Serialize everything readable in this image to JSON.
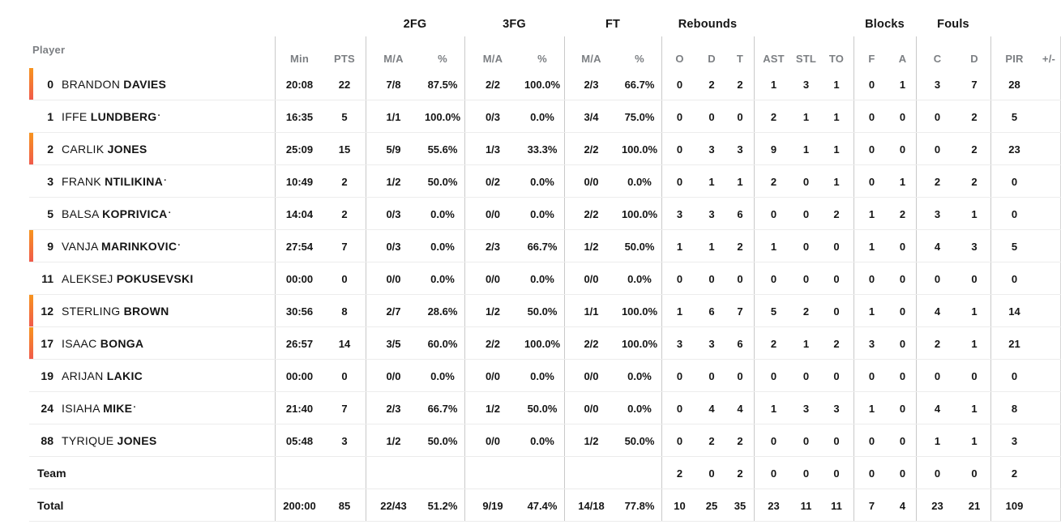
{
  "colors": {
    "on_court_bar_top": "#F7941E",
    "on_court_bar_bottom": "#F0594C",
    "header_gray": "#7c7f83",
    "divider_gray": "#c9c9c9",
    "row_line_gray": "#ececec"
  },
  "table": {
    "groups": {
      "fg2": "2FG",
      "fg3": "3FG",
      "ft": "FT",
      "rebounds": "Rebounds",
      "blocks": "Blocks",
      "fouls": "Fouls"
    },
    "columns": {
      "player": "Player",
      "min": "Min",
      "pts": "PTS",
      "ma": "M/A",
      "pct": "%",
      "reb_o": "O",
      "reb_d": "D",
      "reb_t": "T",
      "ast": "AST",
      "stl": "STL",
      "to": "TO",
      "blk_f": "F",
      "blk_a": "A",
      "foul_c": "C",
      "foul_d": "D",
      "pir": "PIR",
      "plus_minus": "+/-"
    },
    "rows": [
      {
        "type": "player",
        "number": "0",
        "first": "BRANDON",
        "last": "DAVIES",
        "dot": "",
        "on_court": true,
        "min": "20:08",
        "pts": "22",
        "fg2_ma": "7/8",
        "fg2_pct": "87.5%",
        "fg3_ma": "2/2",
        "fg3_pct": "100.0%",
        "ft_ma": "2/3",
        "ft_pct": "66.7%",
        "reb_o": "0",
        "reb_d": "2",
        "reb_t": "2",
        "ast": "1",
        "stl": "3",
        "to": "1",
        "blk_f": "0",
        "blk_a": "1",
        "foul_c": "3",
        "foul_d": "7",
        "pir": "28",
        "plus_minus": ""
      },
      {
        "type": "player",
        "number": "1",
        "first": "IFFE",
        "last": "LUNDBERG",
        "dot": "·",
        "on_court": false,
        "min": "16:35",
        "pts": "5",
        "fg2_ma": "1/1",
        "fg2_pct": "100.0%",
        "fg3_ma": "0/3",
        "fg3_pct": "0.0%",
        "ft_ma": "3/4",
        "ft_pct": "75.0%",
        "reb_o": "0",
        "reb_d": "0",
        "reb_t": "0",
        "ast": "2",
        "stl": "1",
        "to": "1",
        "blk_f": "0",
        "blk_a": "0",
        "foul_c": "0",
        "foul_d": "2",
        "pir": "5",
        "plus_minus": ""
      },
      {
        "type": "player",
        "number": "2",
        "first": "CARLIK",
        "last": "JONES",
        "dot": "",
        "on_court": true,
        "min": "25:09",
        "pts": "15",
        "fg2_ma": "5/9",
        "fg2_pct": "55.6%",
        "fg3_ma": "1/3",
        "fg3_pct": "33.3%",
        "ft_ma": "2/2",
        "ft_pct": "100.0%",
        "reb_o": "0",
        "reb_d": "3",
        "reb_t": "3",
        "ast": "9",
        "stl": "1",
        "to": "1",
        "blk_f": "0",
        "blk_a": "0",
        "foul_c": "0",
        "foul_d": "2",
        "pir": "23",
        "plus_minus": ""
      },
      {
        "type": "player",
        "number": "3",
        "first": "FRANK",
        "last": "NTILIKINA",
        "dot": "·",
        "on_court": false,
        "min": "10:49",
        "pts": "2",
        "fg2_ma": "1/2",
        "fg2_pct": "50.0%",
        "fg3_ma": "0/2",
        "fg3_pct": "0.0%",
        "ft_ma": "0/0",
        "ft_pct": "0.0%",
        "reb_o": "0",
        "reb_d": "1",
        "reb_t": "1",
        "ast": "2",
        "stl": "0",
        "to": "1",
        "blk_f": "0",
        "blk_a": "1",
        "foul_c": "2",
        "foul_d": "2",
        "pir": "0",
        "plus_minus": ""
      },
      {
        "type": "player",
        "number": "5",
        "first": "BALSA",
        "last": "KOPRIVICA",
        "dot": "·",
        "on_court": false,
        "min": "14:04",
        "pts": "2",
        "fg2_ma": "0/3",
        "fg2_pct": "0.0%",
        "fg3_ma": "0/0",
        "fg3_pct": "0.0%",
        "ft_ma": "2/2",
        "ft_pct": "100.0%",
        "reb_o": "3",
        "reb_d": "3",
        "reb_t": "6",
        "ast": "0",
        "stl": "0",
        "to": "2",
        "blk_f": "1",
        "blk_a": "2",
        "foul_c": "3",
        "foul_d": "1",
        "pir": "0",
        "plus_minus": ""
      },
      {
        "type": "player",
        "number": "9",
        "first": "VANJA",
        "last": "MARINKOVIC",
        "dot": "·",
        "on_court": true,
        "min": "27:54",
        "pts": "7",
        "fg2_ma": "0/3",
        "fg2_pct": "0.0%",
        "fg3_ma": "2/3",
        "fg3_pct": "66.7%",
        "ft_ma": "1/2",
        "ft_pct": "50.0%",
        "reb_o": "1",
        "reb_d": "1",
        "reb_t": "2",
        "ast": "1",
        "stl": "0",
        "to": "0",
        "blk_f": "1",
        "blk_a": "0",
        "foul_c": "4",
        "foul_d": "3",
        "pir": "5",
        "plus_minus": ""
      },
      {
        "type": "player",
        "number": "11",
        "first": "ALEKSEJ",
        "last": "POKUSEVSKI",
        "dot": "",
        "on_court": false,
        "min": "00:00",
        "pts": "0",
        "fg2_ma": "0/0",
        "fg2_pct": "0.0%",
        "fg3_ma": "0/0",
        "fg3_pct": "0.0%",
        "ft_ma": "0/0",
        "ft_pct": "0.0%",
        "reb_o": "0",
        "reb_d": "0",
        "reb_t": "0",
        "ast": "0",
        "stl": "0",
        "to": "0",
        "blk_f": "0",
        "blk_a": "0",
        "foul_c": "0",
        "foul_d": "0",
        "pir": "0",
        "plus_minus": ""
      },
      {
        "type": "player",
        "number": "12",
        "first": "STERLING",
        "last": "BROWN",
        "dot": "",
        "on_court": true,
        "min": "30:56",
        "pts": "8",
        "fg2_ma": "2/7",
        "fg2_pct": "28.6%",
        "fg3_ma": "1/2",
        "fg3_pct": "50.0%",
        "ft_ma": "1/1",
        "ft_pct": "100.0%",
        "reb_o": "1",
        "reb_d": "6",
        "reb_t": "7",
        "ast": "5",
        "stl": "2",
        "to": "0",
        "blk_f": "1",
        "blk_a": "0",
        "foul_c": "4",
        "foul_d": "1",
        "pir": "14",
        "plus_minus": ""
      },
      {
        "type": "player",
        "number": "17",
        "first": "ISAAC",
        "last": "BONGA",
        "dot": "",
        "on_court": true,
        "min": "26:57",
        "pts": "14",
        "fg2_ma": "3/5",
        "fg2_pct": "60.0%",
        "fg3_ma": "2/2",
        "fg3_pct": "100.0%",
        "ft_ma": "2/2",
        "ft_pct": "100.0%",
        "reb_o": "3",
        "reb_d": "3",
        "reb_t": "6",
        "ast": "2",
        "stl": "1",
        "to": "2",
        "blk_f": "3",
        "blk_a": "0",
        "foul_c": "2",
        "foul_d": "1",
        "pir": "21",
        "plus_minus": ""
      },
      {
        "type": "player",
        "number": "19",
        "first": "ARIJAN",
        "last": "LAKIC",
        "dot": "",
        "on_court": false,
        "min": "00:00",
        "pts": "0",
        "fg2_ma": "0/0",
        "fg2_pct": "0.0%",
        "fg3_ma": "0/0",
        "fg3_pct": "0.0%",
        "ft_ma": "0/0",
        "ft_pct": "0.0%",
        "reb_o": "0",
        "reb_d": "0",
        "reb_t": "0",
        "ast": "0",
        "stl": "0",
        "to": "0",
        "blk_f": "0",
        "blk_a": "0",
        "foul_c": "0",
        "foul_d": "0",
        "pir": "0",
        "plus_minus": ""
      },
      {
        "type": "player",
        "number": "24",
        "first": "ISIAHA",
        "last": "MIKE",
        "dot": "·",
        "on_court": false,
        "min": "21:40",
        "pts": "7",
        "fg2_ma": "2/3",
        "fg2_pct": "66.7%",
        "fg3_ma": "1/2",
        "fg3_pct": "50.0%",
        "ft_ma": "0/0",
        "ft_pct": "0.0%",
        "reb_o": "0",
        "reb_d": "4",
        "reb_t": "4",
        "ast": "1",
        "stl": "3",
        "to": "3",
        "blk_f": "1",
        "blk_a": "0",
        "foul_c": "4",
        "foul_d": "1",
        "pir": "8",
        "plus_minus": ""
      },
      {
        "type": "player",
        "number": "88",
        "first": "TYRIQUE",
        "last": "JONES",
        "dot": "",
        "on_court": false,
        "min": "05:48",
        "pts": "3",
        "fg2_ma": "1/2",
        "fg2_pct": "50.0%",
        "fg3_ma": "0/0",
        "fg3_pct": "0.0%",
        "ft_ma": "1/2",
        "ft_pct": "50.0%",
        "reb_o": "0",
        "reb_d": "2",
        "reb_t": "2",
        "ast": "0",
        "stl": "0",
        "to": "0",
        "blk_f": "0",
        "blk_a": "0",
        "foul_c": "1",
        "foul_d": "1",
        "pir": "3",
        "plus_minus": ""
      },
      {
        "type": "team",
        "label": "Team",
        "min": "",
        "pts": "",
        "fg2_ma": "",
        "fg2_pct": "",
        "fg3_ma": "",
        "fg3_pct": "",
        "ft_ma": "",
        "ft_pct": "",
        "reb_o": "2",
        "reb_d": "0",
        "reb_t": "2",
        "ast": "0",
        "stl": "0",
        "to": "0",
        "blk_f": "0",
        "blk_a": "0",
        "foul_c": "0",
        "foul_d": "0",
        "pir": "2",
        "plus_minus": ""
      },
      {
        "type": "total",
        "label": "Total",
        "min": "200:00",
        "pts": "85",
        "fg2_ma": "22/43",
        "fg2_pct": "51.2%",
        "fg3_ma": "9/19",
        "fg3_pct": "47.4%",
        "ft_ma": "14/18",
        "ft_pct": "77.8%",
        "reb_o": "10",
        "reb_d": "25",
        "reb_t": "35",
        "ast": "23",
        "stl": "11",
        "to": "11",
        "blk_f": "7",
        "blk_a": "4",
        "foul_c": "23",
        "foul_d": "21",
        "pir": "109",
        "plus_minus": ""
      }
    ]
  }
}
